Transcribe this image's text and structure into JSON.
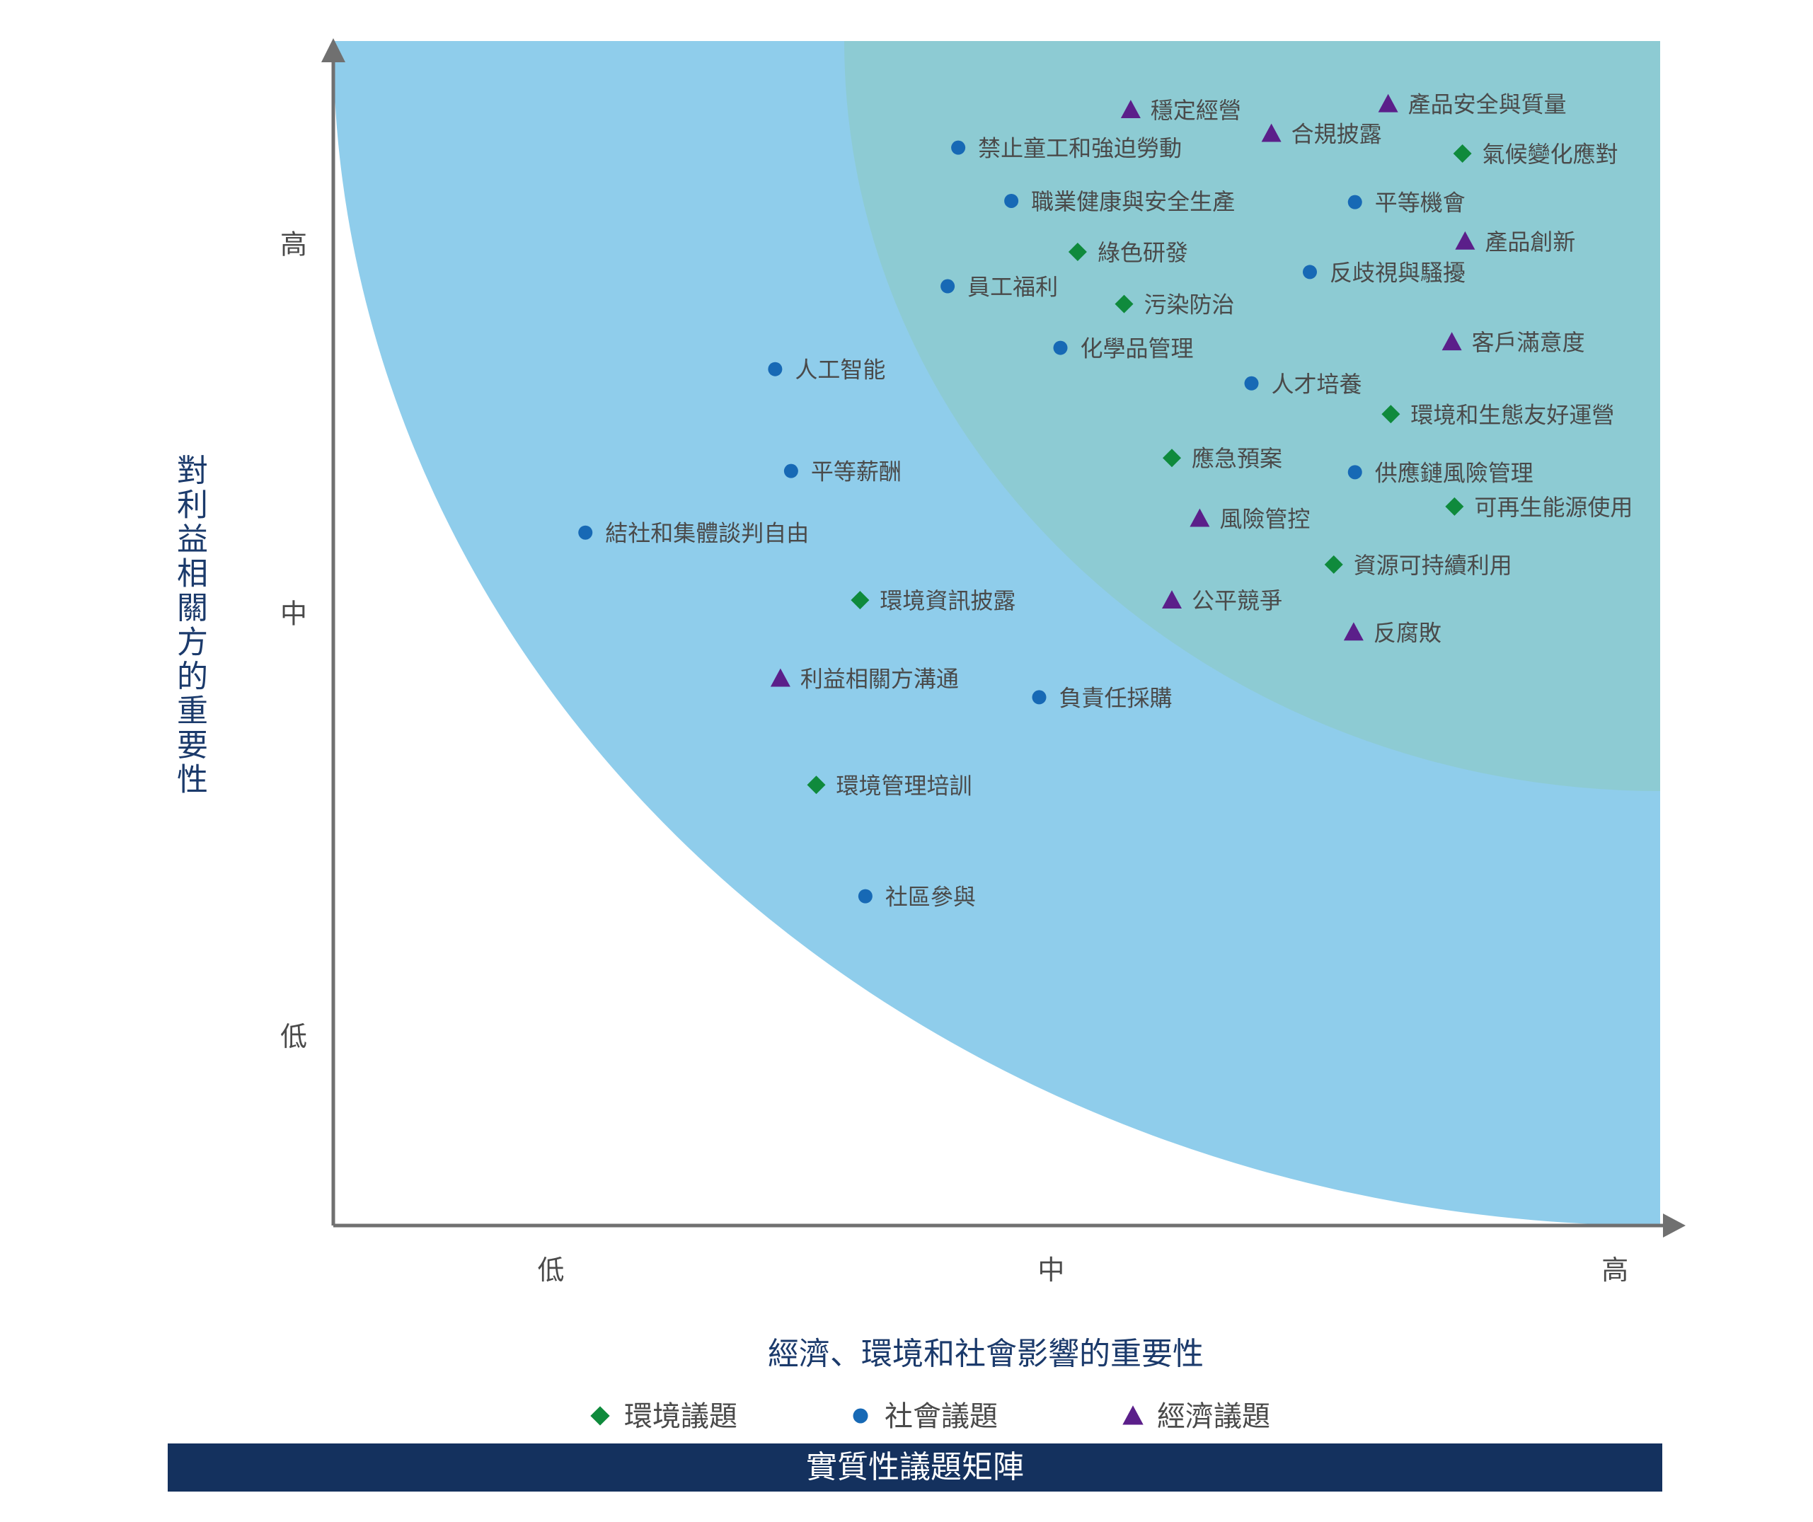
{
  "chart_data": {
    "type": "scatter",
    "xlabel": "經濟、環境和社會影響的重要性",
    "ylabel": "對利益相關方的重要性",
    "footer_title": "實質性議題矩陣",
    "xlim": [
      0,
      1
    ],
    "ylim": [
      0,
      1
    ],
    "x_ticks": [
      {
        "label": "低",
        "value": 0.164
      },
      {
        "label": "中",
        "value": 0.541
      },
      {
        "label": "高",
        "value": 0.966
      }
    ],
    "y_ticks": [
      {
        "label": "高",
        "value": 0.829
      },
      {
        "label": "中",
        "value": 0.517
      },
      {
        "label": "低",
        "value": 0.16
      }
    ],
    "colors": {
      "environment": "#0f8a3c",
      "social": "#1769b5",
      "economic": "#5b1f8a",
      "outer_zone": "#8fcdeb",
      "inner_zone": "#8dcbd3",
      "axis": "#707070",
      "text": "#4a4a4a",
      "axis_title": "#1b3a6b",
      "footer_bg": "#14315e",
      "footer_text": "#ffffff"
    },
    "legend": [
      {
        "key": "environment",
        "label": "環境議題",
        "shape": "diamond"
      },
      {
        "key": "social",
        "label": "社會議題",
        "shape": "circle"
      },
      {
        "key": "economic",
        "label": "經濟議題",
        "shape": "triangle"
      }
    ],
    "points": [
      {
        "label": "穩定經營",
        "category": "economic",
        "x": 0.601,
        "y": 0.942
      },
      {
        "label": "產品安全與質量",
        "category": "economic",
        "x": 0.795,
        "y": 0.947
      },
      {
        "label": "合規披露",
        "category": "economic",
        "x": 0.707,
        "y": 0.922
      },
      {
        "label": "禁止童工和強迫勞動",
        "category": "social",
        "x": 0.471,
        "y": 0.91
      },
      {
        "label": "氣候變化應對",
        "category": "environment",
        "x": 0.851,
        "y": 0.905
      },
      {
        "label": "職業健康與安全生產",
        "category": "social",
        "x": 0.511,
        "y": 0.865
      },
      {
        "label": "平等機會",
        "category": "social",
        "x": 0.77,
        "y": 0.864
      },
      {
        "label": "產品創新",
        "category": "economic",
        "x": 0.853,
        "y": 0.831
      },
      {
        "label": "綠色研發",
        "category": "environment",
        "x": 0.561,
        "y": 0.822
      },
      {
        "label": "反歧視與騷擾",
        "category": "social",
        "x": 0.736,
        "y": 0.805
      },
      {
        "label": "員工福利",
        "category": "social",
        "x": 0.463,
        "y": 0.793
      },
      {
        "label": "污染防治",
        "category": "environment",
        "x": 0.596,
        "y": 0.778
      },
      {
        "label": "客戶滿意度",
        "category": "economic",
        "x": 0.843,
        "y": 0.746
      },
      {
        "label": "化學品管理",
        "category": "social",
        "x": 0.548,
        "y": 0.741
      },
      {
        "label": "人工智能",
        "category": "social",
        "x": 0.333,
        "y": 0.723
      },
      {
        "label": "人才培養",
        "category": "social",
        "x": 0.692,
        "y": 0.711
      },
      {
        "label": "環境和生態友好運營",
        "category": "environment",
        "x": 0.797,
        "y": 0.685
      },
      {
        "label": "應急預案",
        "category": "environment",
        "x": 0.632,
        "y": 0.648
      },
      {
        "label": "供應鏈風險管理",
        "category": "social",
        "x": 0.77,
        "y": 0.636
      },
      {
        "label": "平等薪酬",
        "category": "social",
        "x": 0.345,
        "y": 0.637
      },
      {
        "label": "可再生能源使用",
        "category": "environment",
        "x": 0.845,
        "y": 0.607
      },
      {
        "label": "風險管控",
        "category": "economic",
        "x": 0.653,
        "y": 0.597
      },
      {
        "label": "結社和集體談判自由",
        "category": "social",
        "x": 0.19,
        "y": 0.585
      },
      {
        "label": "資源可持續利用",
        "category": "environment",
        "x": 0.754,
        "y": 0.558
      },
      {
        "label": "公平競爭",
        "category": "economic",
        "x": 0.632,
        "y": 0.528
      },
      {
        "label": "環境資訊披露",
        "category": "environment",
        "x": 0.397,
        "y": 0.528
      },
      {
        "label": "反腐敗",
        "category": "economic",
        "x": 0.769,
        "y": 0.501
      },
      {
        "label": "利益相關方溝通",
        "category": "economic",
        "x": 0.337,
        "y": 0.462
      },
      {
        "label": "負責任採購",
        "category": "social",
        "x": 0.532,
        "y": 0.446
      },
      {
        "label": "環境管理培訓",
        "category": "environment",
        "x": 0.364,
        "y": 0.372
      },
      {
        "label": "社區參與",
        "category": "social",
        "x": 0.401,
        "y": 0.278
      }
    ]
  }
}
